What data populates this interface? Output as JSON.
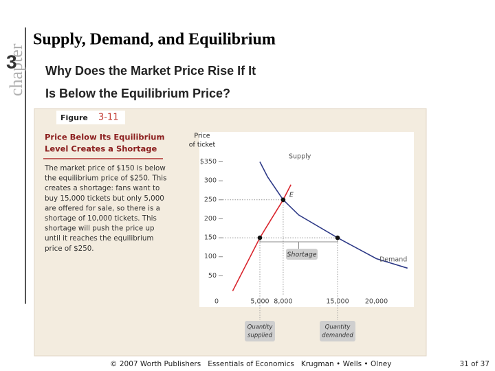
{
  "slide": {
    "chapter_word": "chapter",
    "chapter_number": "3",
    "title": "Supply, Demand, and Equilibrium",
    "subtitle": [
      "Why Does the Market Price Rise If It",
      "Is Below the Equilibrium Price?"
    ],
    "footer": "© 2007 Worth Publishers   Essentials of Economics   Krugman • Wells • Olney",
    "page": "31 of 37"
  },
  "figure": {
    "label": "Figure",
    "number": "3-11",
    "heading": [
      "Price Below Its Equilibrium",
      "Level Creates a Shortage"
    ],
    "body": [
      "The market price of $150 is below",
      "the equilibrium price of $250. This",
      "creates a shortage: fans want to",
      "buy 15,000 tickets but only 5,000",
      "are offered for sale, so there is a",
      "shortage of 10,000 tickets. This",
      "shortage will push the price up",
      "until it reaches the equilibrium",
      "price of $250."
    ]
  },
  "chart_data": {
    "type": "line",
    "y_label": [
      "Price",
      "of ticket"
    ],
    "xlim": [
      0,
      25000
    ],
    "ylim": [
      0,
      420
    ],
    "xticks": [
      {
        "value": 0,
        "label": "0"
      },
      {
        "value": 5000,
        "label": "5,000"
      },
      {
        "value": 8000,
        "label": "8,000"
      },
      {
        "value": 15000,
        "label": "15,000"
      },
      {
        "value": 20000,
        "label": "20,000"
      }
    ],
    "yticks": [
      50,
      100,
      150,
      200,
      250,
      300,
      {
        "value": 350,
        "label": "$350"
      }
    ],
    "series": [
      {
        "name": "Supply",
        "color": "#d9262e",
        "x": [
          1500,
          3000,
          5000,
          6500,
          8000,
          9000
        ],
        "values": [
          10,
          70,
          150,
          200,
          250,
          290
        ]
      },
      {
        "name": "Demand",
        "color": "#2e3a87",
        "x": [
          5000,
          6000,
          8000,
          10000,
          15000,
          20000,
          24000
        ],
        "values": [
          350,
          310,
          250,
          210,
          150,
          95,
          70
        ]
      }
    ],
    "points": {
      "x": [
        5000,
        8000,
        15000
      ],
      "values": [
        150,
        250,
        150
      ]
    },
    "equilibrium_label": "E",
    "shortage_label": "Shortage",
    "quantity_supplied_label": [
      "Quantity",
      "supplied"
    ],
    "quantity_demanded_label": [
      "Quantity",
      "demanded"
    ]
  }
}
